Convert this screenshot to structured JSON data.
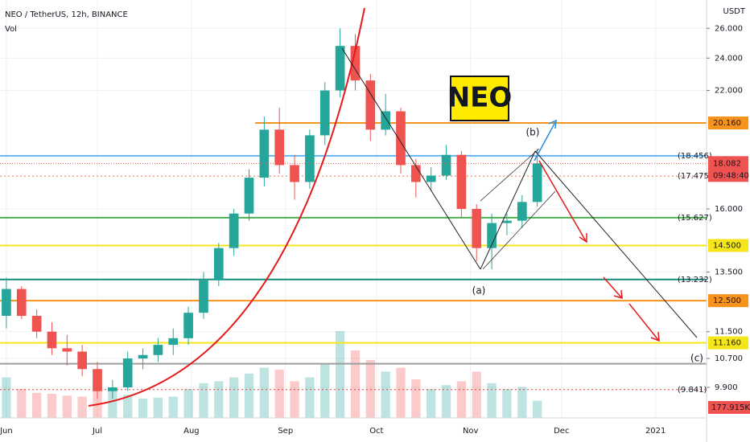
{
  "chart_data": {
    "type": "candlestick",
    "title": "NEO / TetherUS, 12h, BINANCE",
    "volume_title": "Vol",
    "currency": "USDT",
    "log_scale": true,
    "ylim": [
      9.12,
      28.06
    ],
    "yticks": [
      {
        "value": 26,
        "label": "26.000"
      },
      {
        "value": 24,
        "label": "24.000"
      },
      {
        "value": 22,
        "label": "22.000"
      },
      {
        "value": 16,
        "label": "16.000"
      },
      {
        "value": 13.5,
        "label": "13.500"
      },
      {
        "value": 11.5,
        "label": "11.500"
      },
      {
        "value": 10.7,
        "label": "10.700"
      },
      {
        "value": 9.9,
        "label": "9.900"
      }
    ],
    "xlim": [
      -2.1,
      230.8
    ],
    "xticks": [
      {
        "value": 0,
        "label": "Jun"
      },
      {
        "value": 30,
        "label": "Jul"
      },
      {
        "value": 61,
        "label": "Aug"
      },
      {
        "value": 92,
        "label": "Sep"
      },
      {
        "value": 122,
        "label": "Oct"
      },
      {
        "value": 153,
        "label": "Nov"
      },
      {
        "value": 183,
        "label": "Dec"
      },
      {
        "value": 214,
        "label": "2021"
      }
    ],
    "up_color": "#26a69a",
    "down_color": "#ef5350",
    "x": [
      0,
      5,
      10,
      15,
      20,
      25,
      30,
      35,
      40,
      45,
      50,
      55,
      60,
      65,
      70,
      75,
      80,
      85,
      90,
      95,
      100,
      105,
      110,
      115,
      120,
      125,
      130,
      135,
      140,
      145,
      150,
      155,
      160,
      165,
      170,
      175
    ],
    "open": [
      12.0,
      12.9,
      12.0,
      11.5,
      11.0,
      10.9,
      10.4,
      9.8,
      9.9,
      10.7,
      10.8,
      11.1,
      11.3,
      12.1,
      13.2,
      14.4,
      15.8,
      17.4,
      19.8,
      18.0,
      17.2,
      19.5,
      22.0,
      24.8,
      22.6,
      19.8,
      20.8,
      18.0,
      17.2,
      17.5,
      18.5,
      16.0,
      14.4,
      15.4,
      15.5,
      16.3
    ],
    "high": [
      13.3,
      13.0,
      12.2,
      11.8,
      11.4,
      11.1,
      10.6,
      10.1,
      10.9,
      11.0,
      11.3,
      11.6,
      12.3,
      13.5,
      14.6,
      16.0,
      17.8,
      20.5,
      21.0,
      18.5,
      19.8,
      22.5,
      26.0,
      25.6,
      23.0,
      21.8,
      21.0,
      18.3,
      17.9,
      19.0,
      18.7,
      16.2,
      15.8,
      15.8,
      16.6,
      18.8
    ],
    "low": [
      11.6,
      11.9,
      11.3,
      10.8,
      10.5,
      10.2,
      9.6,
      9.6,
      9.8,
      10.4,
      10.6,
      10.8,
      11.1,
      11.9,
      13.0,
      14.1,
      15.5,
      17.0,
      17.6,
      16.4,
      16.9,
      19.0,
      21.6,
      22.0,
      19.2,
      19.5,
      17.6,
      16.5,
      16.8,
      17.3,
      15.6,
      13.9,
      13.6,
      14.9,
      15.2,
      16.1
    ],
    "close": [
      12.9,
      12.0,
      11.5,
      11.0,
      10.9,
      10.4,
      9.8,
      9.9,
      10.7,
      10.8,
      11.1,
      11.3,
      12.1,
      13.2,
      14.4,
      15.8,
      17.4,
      19.8,
      18.0,
      17.2,
      19.5,
      22.0,
      24.8,
      22.6,
      19.8,
      20.8,
      18.0,
      17.2,
      17.5,
      18.5,
      16.0,
      14.4,
      15.4,
      15.5,
      16.3,
      18.082
    ],
    "volume": [
      420,
      300,
      260,
      250,
      230,
      220,
      330,
      280,
      240,
      200,
      210,
      220,
      300,
      360,
      380,
      420,
      460,
      520,
      500,
      380,
      420,
      560,
      900,
      700,
      600,
      480,
      520,
      400,
      300,
      340,
      380,
      480,
      360,
      300,
      320,
      177.915
    ],
    "volume_max": 1000,
    "volume_label": "177.915K",
    "last_price_label": "18.082",
    "countdown": "09:48:40",
    "levels": [
      {
        "value": 20.16,
        "label": "20.160",
        "color": "#f7931a",
        "boxed": true,
        "start": 82
      },
      {
        "value": 18.456,
        "label": "(18.456)",
        "color": "#64b5f6",
        "boxed": false
      },
      {
        "value": 17.475,
        "label": "(17.475)",
        "color": "#e07b53",
        "boxed": false,
        "dotted": true
      },
      {
        "value": 15.627,
        "label": "(15.627)",
        "color": "#4caf50",
        "boxed": false
      },
      {
        "value": 14.5,
        "label": "14.500",
        "color": "#f5e61a",
        "boxed": true
      },
      {
        "value": 13.232,
        "label": "(13.232)",
        "color": "#138c7a",
        "boxed": false
      },
      {
        "value": 12.5,
        "label": "12.500",
        "color": "#f7931a",
        "boxed": true
      },
      {
        "value": 11.16,
        "label": "11.160",
        "color": "#f5e61a",
        "boxed": true
      },
      {
        "value": 10.55,
        "color": "#9e9e9e",
        "boxed": false
      },
      {
        "value": 9.841,
        "label": "(9.841)",
        "color": "#e53935",
        "boxed": false,
        "dotted": true
      }
    ],
    "annotations": {
      "logo": "NEO",
      "a": "(a)",
      "b": "(b)",
      "c": "(c)"
    }
  }
}
